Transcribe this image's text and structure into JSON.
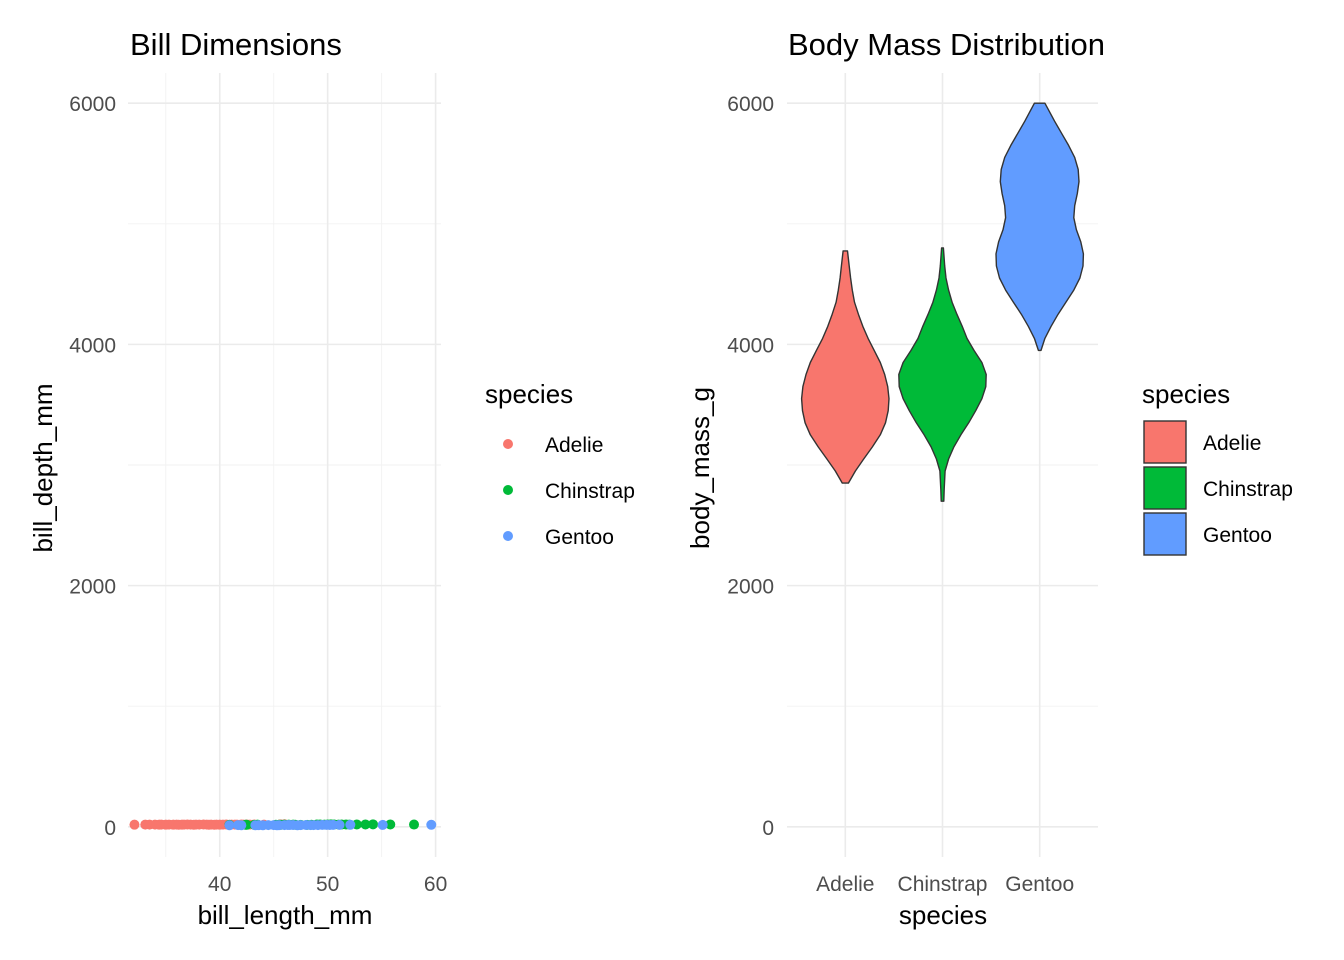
{
  "chart_data": [
    {
      "type": "scatter",
      "title": "Bill Dimensions",
      "xlabel": "bill_length_mm",
      "ylabel": "bill_depth_mm",
      "xlim": [
        31.5,
        60.5
      ],
      "ylim": [
        -250,
        6250
      ],
      "x_ticks": [
        40,
        50,
        60
      ],
      "y_ticks": [
        0,
        2000,
        4000,
        6000
      ],
      "grid": true,
      "legend": {
        "title": "species",
        "position": "right"
      },
      "series": [
        {
          "name": "Adelie",
          "color": "#F8766D",
          "x": [
            32.1,
            33.1,
            33.5,
            34.0,
            34.4,
            34.6,
            35.0,
            35.3,
            35.7,
            36.0,
            36.2,
            36.5,
            36.7,
            37.0,
            37.3,
            37.6,
            37.8,
            38.1,
            38.5,
            38.8,
            39.0,
            39.2,
            39.5,
            39.7,
            40.0,
            40.3,
            40.6,
            40.9,
            41.1,
            41.4,
            41.6,
            42.0,
            42.2,
            42.5,
            42.8,
            43.2,
            44.1,
            45.6,
            46.0
          ],
          "y": [
            18.1,
            18.2,
            18.3,
            18.4,
            18.1,
            18.5,
            17.9,
            18.9,
            18.0,
            18.6,
            17.2,
            18.0,
            18.8,
            19.1,
            18.7,
            17.8,
            18.2,
            18.6,
            19.2,
            18.3,
            17.5,
            18.9,
            17.8,
            18.4,
            18.0,
            18.7,
            19.0,
            17.6,
            18.5,
            18.5,
            18.0,
            19.5,
            18.6,
            19.0,
            18.4,
            19.2,
            18.0,
            20.3,
            21.5
          ]
        },
        {
          "name": "Chinstrap",
          "color": "#00BA38",
          "x": [
            40.9,
            42.4,
            42.5,
            43.2,
            43.5,
            45.2,
            45.5,
            45.7,
            46.0,
            46.4,
            46.8,
            47.0,
            47.5,
            48.1,
            48.5,
            49.0,
            49.3,
            49.7,
            50.0,
            50.3,
            50.6,
            51.0,
            51.3,
            51.7,
            52.0,
            52.7,
            53.5,
            54.2,
            55.8,
            58.0
          ],
          "y": [
            16.6,
            17.3,
            17.0,
            16.6,
            17.9,
            17.8,
            17.0,
            17.3,
            18.9,
            18.6,
            17.9,
            17.3,
            16.8,
            16.4,
            17.5,
            19.5,
            19.9,
            18.6,
            19.5,
            20.0,
            19.4,
            18.8,
            19.2,
            19.8,
            18.2,
            19.8,
            19.9,
            20.8,
            19.8,
            19.0
          ]
        },
        {
          "name": "Gentoo",
          "color": "#619CFF",
          "x": [
            40.9,
            41.7,
            42.0,
            43.3,
            43.6,
            44.0,
            44.5,
            45.0,
            45.3,
            45.5,
            46.0,
            46.3,
            46.5,
            46.8,
            47.2,
            47.5,
            48.0,
            48.4,
            48.7,
            49.1,
            49.5,
            49.9,
            50.2,
            50.5,
            51.1,
            52.1,
            55.1,
            59.6
          ],
          "y": [
            13.7,
            14.7,
            13.5,
            13.4,
            13.9,
            13.6,
            14.3,
            14.4,
            13.7,
            13.9,
            14.2,
            15.8,
            14.8,
            15.4,
            13.7,
            14.2,
            15.0,
            14.4,
            14.1,
            14.5,
            16.1,
            16.1,
            15.2,
            15.9,
            16.3,
            17.0,
            16.0,
            17.0
          ]
        }
      ]
    },
    {
      "type": "violin",
      "title": "Body Mass Distribution",
      "xlabel": "species",
      "ylabel": "body_mass_g",
      "categories": [
        "Adelie",
        "Chinstrap",
        "Gentoo"
      ],
      "ylim": [
        -250,
        6250
      ],
      "y_ticks": [
        0,
        2000,
        4000,
        6000
      ],
      "grid": true,
      "legend": {
        "title": "species",
        "position": "right"
      },
      "series": [
        {
          "name": "Adelie",
          "color": "#F8766D",
          "min": 2850,
          "max": 4775,
          "density_y": [
            2850,
            2950,
            3050,
            3150,
            3250,
            3350,
            3450,
            3550,
            3650,
            3750,
            3850,
            3950,
            4050,
            4150,
            4250,
            4350,
            4450,
            4550,
            4650,
            4775
          ],
          "density_w": [
            0.07,
            0.23,
            0.42,
            0.62,
            0.8,
            0.92,
            0.98,
            1.0,
            0.97,
            0.9,
            0.8,
            0.66,
            0.52,
            0.4,
            0.3,
            0.21,
            0.16,
            0.12,
            0.09,
            0.05
          ]
        },
        {
          "name": "Chinstrap",
          "color": "#00BA38",
          "min": 2700,
          "max": 4800,
          "density_y": [
            2700,
            2800,
            2950,
            3050,
            3150,
            3250,
            3350,
            3450,
            3550,
            3650,
            3750,
            3850,
            3950,
            4050,
            4150,
            4250,
            4350,
            4450,
            4550,
            4650,
            4800
          ],
          "density_w": [
            0.03,
            0.04,
            0.06,
            0.14,
            0.26,
            0.42,
            0.6,
            0.76,
            0.9,
            0.99,
            1.0,
            0.9,
            0.72,
            0.56,
            0.45,
            0.33,
            0.22,
            0.14,
            0.08,
            0.05,
            0.02
          ]
        },
        {
          "name": "Gentoo",
          "color": "#619CFF",
          "min": 3950,
          "max": 6000,
          "density_y": [
            3950,
            4050,
            4150,
            4250,
            4350,
            4450,
            4550,
            4650,
            4750,
            4850,
            4950,
            5050,
            5150,
            5250,
            5350,
            5450,
            5550,
            5650,
            5750,
            5850,
            6000
          ],
          "density_w": [
            0.03,
            0.12,
            0.26,
            0.42,
            0.6,
            0.78,
            0.92,
            0.99,
            1.0,
            0.94,
            0.84,
            0.78,
            0.8,
            0.86,
            0.9,
            0.88,
            0.8,
            0.66,
            0.5,
            0.34,
            0.12
          ]
        }
      ]
    }
  ]
}
